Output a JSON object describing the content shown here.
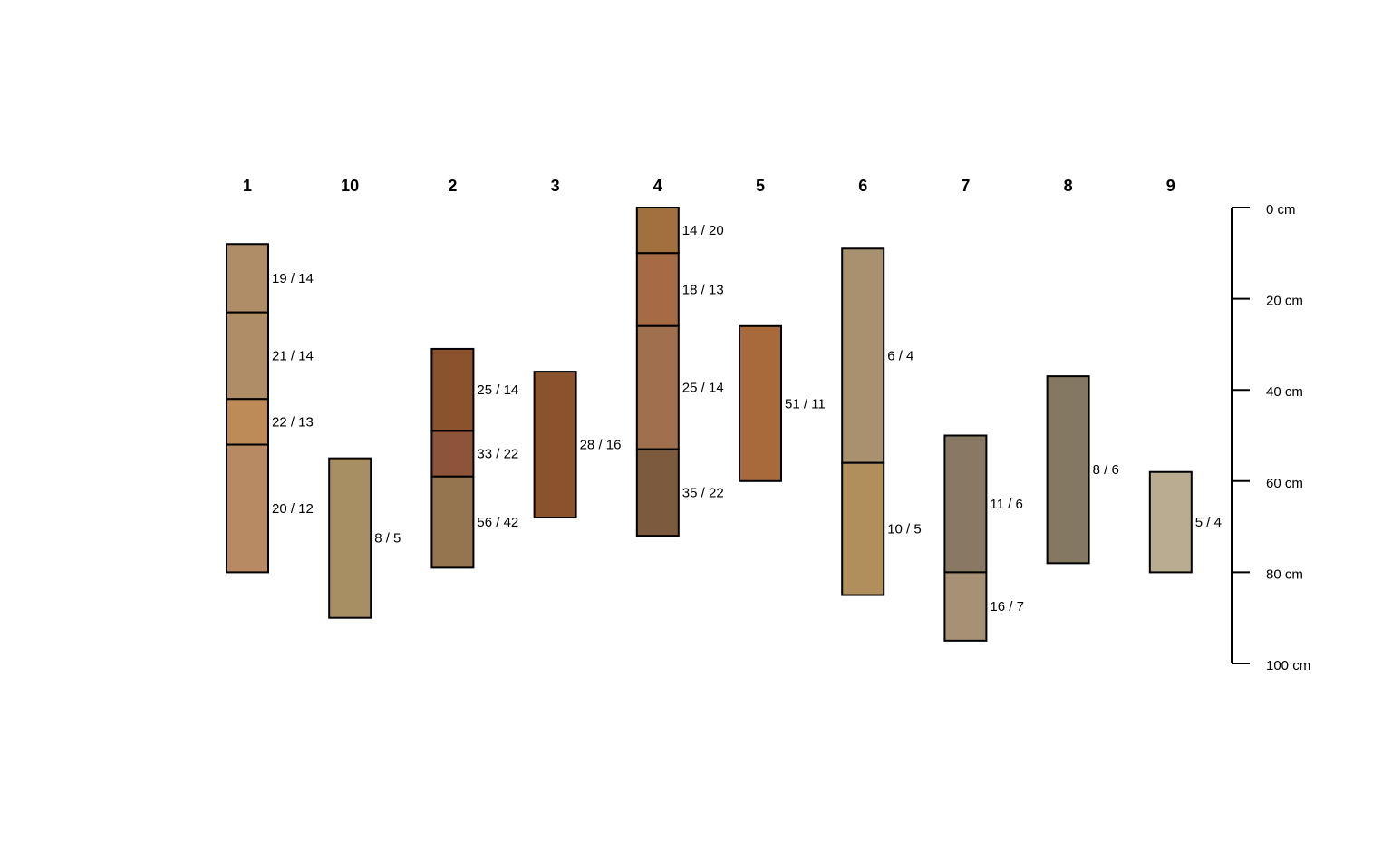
{
  "chart_data": {
    "type": "soil-profile",
    "depth_unit": "cm",
    "ylim": [
      0,
      100
    ],
    "axis_ticks": [
      {
        "value": 0,
        "label": "0 cm"
      },
      {
        "value": 20,
        "label": "20 cm"
      },
      {
        "value": 40,
        "label": "40 cm"
      },
      {
        "value": 60,
        "label": "60 cm"
      },
      {
        "value": 80,
        "label": "80 cm"
      },
      {
        "value": 100,
        "label": "100 cm"
      }
    ],
    "profiles": [
      {
        "id": "1",
        "horizons": [
          {
            "top": 8,
            "bottom": 23,
            "label": "19 / 14",
            "color": "#AE8D67"
          },
          {
            "top": 23,
            "bottom": 42,
            "label": "21 / 14",
            "color": "#AE8D67"
          },
          {
            "top": 42,
            "bottom": 52,
            "label": "22 / 13",
            "color": "#BD8B57"
          },
          {
            "top": 52,
            "bottom": 80,
            "label": "20 / 12",
            "color": "#B88A63"
          }
        ]
      },
      {
        "id": "10",
        "horizons": [
          {
            "top": 55,
            "bottom": 90,
            "label": "8 / 5",
            "color": "#A88E63"
          }
        ]
      },
      {
        "id": "2",
        "horizons": [
          {
            "top": 31,
            "bottom": 49,
            "label": "25 / 14",
            "color": "#8A532E"
          },
          {
            "top": 49,
            "bottom": 59,
            "label": "33 / 22",
            "color": "#8E543A"
          },
          {
            "top": 59,
            "bottom": 79,
            "label": "56 / 42",
            "color": "#95754F"
          }
        ]
      },
      {
        "id": "3",
        "horizons": [
          {
            "top": 36,
            "bottom": 68,
            "label": "28 / 16",
            "color": "#8A532E"
          }
        ]
      },
      {
        "id": "4",
        "horizons": [
          {
            "top": 0,
            "bottom": 10,
            "label": "14 / 20",
            "color": "#A2703F"
          },
          {
            "top": 10,
            "bottom": 26,
            "label": "18 / 13",
            "color": "#A66B45"
          },
          {
            "top": 26,
            "bottom": 53,
            "label": "25 / 14",
            "color": "#A06F4E"
          },
          {
            "top": 53,
            "bottom": 72,
            "label": "35 / 22",
            "color": "#7C5A3D"
          }
        ]
      },
      {
        "id": "5",
        "horizons": [
          {
            "top": 26,
            "bottom": 60,
            "label": "51 / 11",
            "color": "#A96A3B"
          }
        ]
      },
      {
        "id": "6",
        "horizons": [
          {
            "top": 9,
            "bottom": 56,
            "label": "6 / 4",
            "color": "#A8916F"
          },
          {
            "top": 56,
            "bottom": 85,
            "label": "10 / 5",
            "color": "#B18F5D"
          }
        ]
      },
      {
        "id": "7",
        "horizons": [
          {
            "top": 50,
            "bottom": 80,
            "label": "11 / 6",
            "color": "#887864"
          },
          {
            "top": 80,
            "bottom": 95,
            "label": "16 / 7",
            "color": "#A69174"
          }
        ]
      },
      {
        "id": "8",
        "horizons": [
          {
            "top": 37,
            "bottom": 78,
            "label": "8 / 6",
            "color": "#847862"
          }
        ]
      },
      {
        "id": "9",
        "horizons": [
          {
            "top": 58,
            "bottom": 80,
            "label": "5 / 4",
            "color": "#BAAC91"
          }
        ]
      }
    ]
  }
}
